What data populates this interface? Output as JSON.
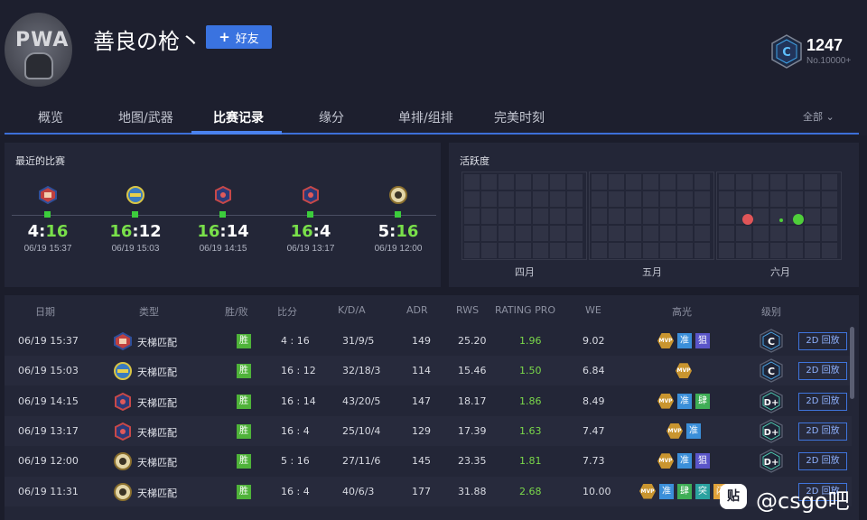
{
  "profile": {
    "avatar_text": "PWA",
    "name": "善良の枪丶",
    "add_friend_label": "好友",
    "rank_score": "1247",
    "rank_no": "No.10000+",
    "rank_letter": "C"
  },
  "tabs": [
    {
      "label": "概览"
    },
    {
      "label": "地图/武器"
    },
    {
      "label": "比赛记录"
    },
    {
      "label": "缘分"
    },
    {
      "label": "单排/组排"
    },
    {
      "label": "完美时刻"
    }
  ],
  "filter_label": "全部",
  "recent": {
    "title": "最近的比赛",
    "matches": [
      {
        "left": "4",
        "right": "16",
        "date": "06/19 15:37",
        "icon": "red-map-icon"
      },
      {
        "left": "16",
        "right": "12",
        "date": "06/19 15:03",
        "icon": "yellow-map-icon"
      },
      {
        "left": "16",
        "right": "14",
        "date": "06/19 14:15",
        "icon": "blue-map-icon"
      },
      {
        "left": "16",
        "right": "4",
        "date": "06/19 13:17",
        "icon": "blue-map-icon"
      },
      {
        "left": "5",
        "right": "16",
        "date": "06/19 12:00",
        "icon": "gold-map-icon"
      }
    ]
  },
  "activity": {
    "title": "活跃度",
    "months": [
      "四月",
      "五月",
      "六月"
    ]
  },
  "table": {
    "headers": [
      "日期",
      "类型",
      "胜/败",
      "比分",
      "K/D/A",
      "ADR",
      "RWS",
      "RATING PRO",
      "WE",
      "高光",
      "级别"
    ],
    "win_label": "胜",
    "replay_label": "2D 回放",
    "rows": [
      {
        "date": "06/19 15:37",
        "type": "天梯匹配",
        "score": "4 : 16",
        "kda": "31/9/5",
        "adr": "149",
        "rws": "25.20",
        "rating": "1.96",
        "we": "9.02",
        "level": "C",
        "highlights": [
          "MVP",
          "准",
          "狙"
        ]
      },
      {
        "date": "06/19 15:03",
        "type": "天梯匹配",
        "score": "16 : 12",
        "kda": "32/18/3",
        "adr": "114",
        "rws": "15.46",
        "rating": "1.50",
        "we": "6.84",
        "level": "C",
        "highlights": [
          "MVP"
        ]
      },
      {
        "date": "06/19 14:15",
        "type": "天梯匹配",
        "score": "16 : 14",
        "kda": "43/20/5",
        "adr": "147",
        "rws": "18.17",
        "rating": "1.86",
        "we": "8.49",
        "level": "D+",
        "highlights": [
          "MVP",
          "准",
          "肆"
        ]
      },
      {
        "date": "06/19 13:17",
        "type": "天梯匹配",
        "score": "16 : 4",
        "kda": "25/10/4",
        "adr": "129",
        "rws": "17.39",
        "rating": "1.63",
        "we": "7.47",
        "level": "D+",
        "highlights": [
          "MVP",
          "准"
        ]
      },
      {
        "date": "06/19 12:00",
        "type": "天梯匹配",
        "score": "5 : 16",
        "kda": "27/11/6",
        "adr": "145",
        "rws": "23.35",
        "rating": "1.81",
        "we": "7.73",
        "level": "D+",
        "highlights": [
          "MVP",
          "准",
          "狙"
        ]
      },
      {
        "date": "06/19 11:31",
        "type": "天梯匹配",
        "score": "16 : 4",
        "kda": "40/6/3",
        "adr": "177",
        "rws": "31.88",
        "rating": "2.68",
        "we": "10.00",
        "level": "",
        "highlights": [
          "MVP",
          "准",
          "肆",
          "突",
          "闪"
        ]
      }
    ]
  },
  "watermark": {
    "logo": "贴",
    "text": "@csgo吧"
  },
  "colors": {
    "accent": "#3a73e0",
    "win_green": "#79e04a",
    "mvp_gold": "#c9952f",
    "panel": "#232637",
    "background": "#1b1d2b"
  }
}
